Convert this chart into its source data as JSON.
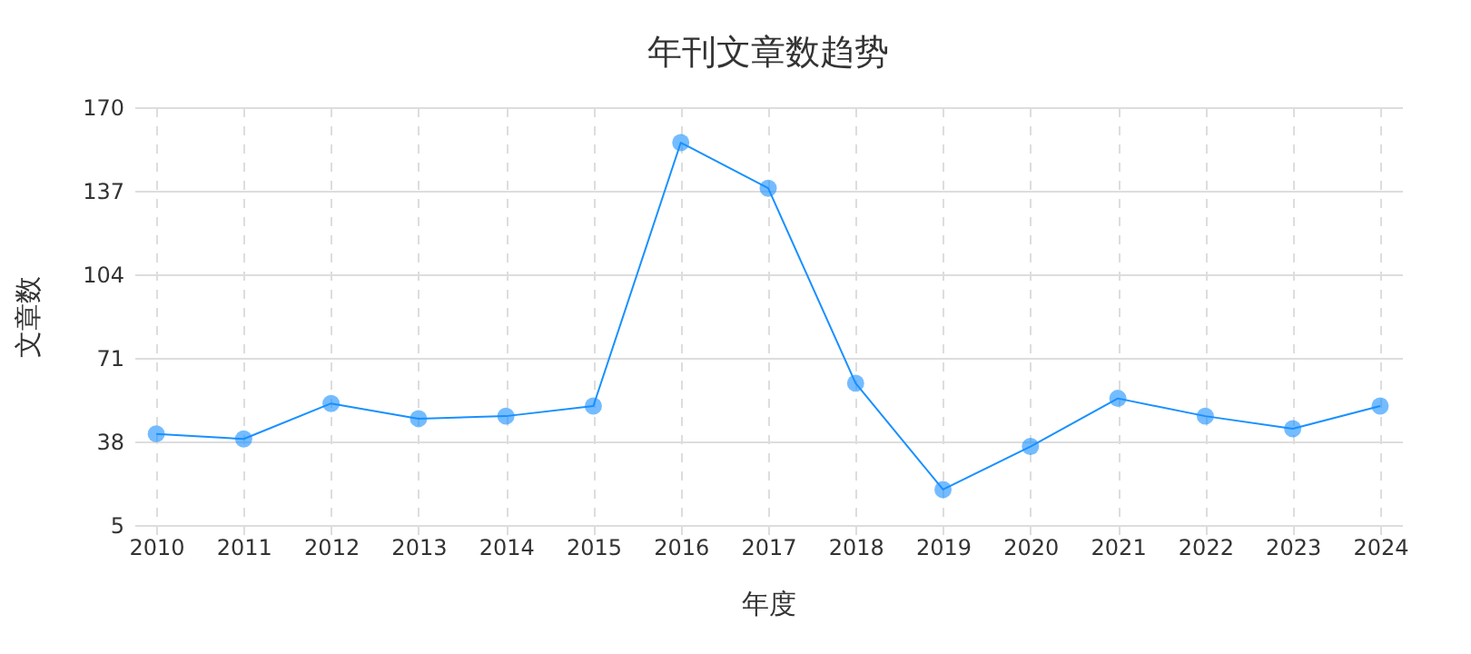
{
  "chart_data": {
    "type": "line",
    "title": "年刊文章数趋势",
    "xlabel": "年度",
    "ylabel": "文章数",
    "categories": [
      "2010",
      "2011",
      "2012",
      "2013",
      "2014",
      "2015",
      "2016",
      "2017",
      "2018",
      "2019",
      "2020",
      "2021",
      "2022",
      "2023",
      "2024"
    ],
    "series": [
      {
        "color": "#1890ff",
        "values": [
          41,
          39,
          53,
          47,
          48,
          52,
          156,
          138,
          61,
          19,
          36,
          55,
          48,
          43,
          52
        ]
      }
    ],
    "ylim": [
      5,
      170
    ],
    "yticks": [
      5,
      38,
      71,
      104,
      137,
      170
    ],
    "grid": true,
    "marker": "circle",
    "line_style": "solid"
  }
}
